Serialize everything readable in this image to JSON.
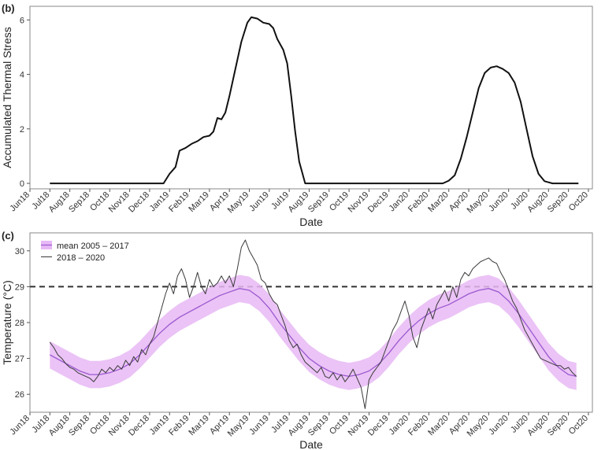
{
  "chart_data": [
    {
      "panel": "(b)",
      "type": "line",
      "xlabel": "Date",
      "ylabel": "Accumulated Thermal Stress",
      "ylim": [
        -0.2,
        6.5
      ],
      "yticks": [
        0,
        2,
        4,
        6
      ],
      "xtick_labels": [
        "Jun18",
        "Jul18",
        "Aug18",
        "Sep18",
        "Oct18",
        "Nov18",
        "Dec18",
        "Jan19",
        "Feb19",
        "Mar19",
        "Apr19",
        "May19",
        "Jun19",
        "Jul19",
        "Aug19",
        "Sep19",
        "Oct19",
        "Nov19",
        "Dec19",
        "Jan20",
        "Feb20",
        "Mar20",
        "Apr20",
        "May20",
        "Jun20",
        "Jul20",
        "Aug20",
        "Sep20",
        "Oct20"
      ],
      "grid": false,
      "series": [
        {
          "color": "#111111",
          "points": [
            [
              1,
              0
            ],
            [
              2,
              0
            ],
            [
              3,
              0
            ],
            [
              4,
              0
            ],
            [
              5,
              0
            ],
            [
              6,
              0
            ],
            [
              6.7,
              0
            ],
            [
              7.0,
              0.35
            ],
            [
              7.3,
              0.6
            ],
            [
              7.5,
              1.2
            ],
            [
              7.8,
              1.3
            ],
            [
              8.1,
              1.45
            ],
            [
              8.4,
              1.55
            ],
            [
              8.7,
              1.7
            ],
            [
              9.0,
              1.75
            ],
            [
              9.2,
              1.9
            ],
            [
              9.4,
              2.4
            ],
            [
              9.6,
              2.35
            ],
            [
              9.8,
              2.6
            ],
            [
              10.0,
              3.2
            ],
            [
              10.3,
              4.2
            ],
            [
              10.6,
              5.2
            ],
            [
              10.9,
              5.9
            ],
            [
              11.1,
              6.1
            ],
            [
              11.4,
              6.05
            ],
            [
              11.7,
              5.9
            ],
            [
              12.0,
              5.85
            ],
            [
              12.2,
              5.7
            ],
            [
              12.4,
              5.3
            ],
            [
              12.7,
              4.9
            ],
            [
              12.9,
              4.4
            ],
            [
              13.1,
              3.2
            ],
            [
              13.3,
              1.9
            ],
            [
              13.5,
              0.8
            ],
            [
              13.8,
              0
            ],
            [
              14.5,
              0
            ],
            [
              15,
              0
            ],
            [
              16,
              0
            ],
            [
              17,
              0
            ],
            [
              18,
              0
            ],
            [
              19,
              0
            ],
            [
              20,
              0
            ],
            [
              20.7,
              0
            ],
            [
              21.0,
              0.1
            ],
            [
              21.3,
              0.3
            ],
            [
              21.6,
              0.9
            ],
            [
              21.9,
              1.7
            ],
            [
              22.2,
              2.6
            ],
            [
              22.5,
              3.5
            ],
            [
              22.8,
              4.05
            ],
            [
              23.1,
              4.25
            ],
            [
              23.4,
              4.3
            ],
            [
              23.7,
              4.2
            ],
            [
              24.0,
              4.05
            ],
            [
              24.3,
              3.7
            ],
            [
              24.6,
              3.0
            ],
            [
              24.9,
              2.0
            ],
            [
              25.2,
              1.0
            ],
            [
              25.5,
              0.35
            ],
            [
              25.8,
              0.08
            ],
            [
              26.2,
              0
            ],
            [
              27,
              0
            ],
            [
              27.5,
              0
            ]
          ]
        }
      ]
    },
    {
      "panel": "(c)",
      "type": "line",
      "xlabel": "Date",
      "ylabel": "Temperature (°C)",
      "ylim": [
        25.5,
        30.5
      ],
      "yticks": [
        26,
        27,
        28,
        29,
        30
      ],
      "xtick_labels": [
        "Jun18",
        "Jul18",
        "Aug18",
        "Sep18",
        "Oct18",
        "Nov18",
        "Dec18",
        "Jan19",
        "Feb19",
        "Mar19",
        "Apr19",
        "May19",
        "Jun19",
        "Jul19",
        "Aug19",
        "Sep19",
        "Oct19",
        "Nov19",
        "Dec19",
        "Jan20",
        "Feb20",
        "Mar20",
        "Apr20",
        "May20",
        "Jun20",
        "Jul20",
        "Aug20",
        "Sep20",
        "Oct20"
      ],
      "threshold": {
        "y": 29,
        "style": "dashed",
        "color": "#333333"
      },
      "grid": false,
      "legend_position": "top-left",
      "series": [
        {
          "name": "mean 2005 – 2017",
          "kind": "band",
          "color": "#9b59d0",
          "band_color": "#e7b8f5",
          "points": [
            [
              1,
              27.1
            ],
            [
              1.5,
              26.95
            ],
            [
              2,
              26.8
            ],
            [
              2.5,
              26.65
            ],
            [
              3,
              26.55
            ],
            [
              3.5,
              26.55
            ],
            [
              4,
              26.6
            ],
            [
              4.5,
              26.7
            ],
            [
              5,
              26.85
            ],
            [
              5.5,
              27.1
            ],
            [
              6,
              27.4
            ],
            [
              6.5,
              27.7
            ],
            [
              7,
              27.95
            ],
            [
              7.5,
              28.15
            ],
            [
              8,
              28.3
            ],
            [
              8.5,
              28.45
            ],
            [
              9,
              28.6
            ],
            [
              9.5,
              28.75
            ],
            [
              10,
              28.85
            ],
            [
              10.5,
              28.95
            ],
            [
              11,
              28.9
            ],
            [
              11.5,
              28.7
            ],
            [
              12,
              28.4
            ],
            [
              12.5,
              28.0
            ],
            [
              13,
              27.65
            ],
            [
              13.5,
              27.3
            ],
            [
              14,
              27.0
            ],
            [
              14.5,
              26.8
            ],
            [
              15,
              26.65
            ],
            [
              15.5,
              26.55
            ],
            [
              16,
              26.5
            ],
            [
              16.5,
              26.55
            ],
            [
              17,
              26.65
            ],
            [
              17.5,
              26.85
            ],
            [
              18,
              27.15
            ],
            [
              18.5,
              27.5
            ],
            [
              19,
              27.8
            ],
            [
              19.5,
              28.05
            ],
            [
              20,
              28.25
            ],
            [
              20.5,
              28.4
            ],
            [
              21,
              28.5
            ],
            [
              21.5,
              28.65
            ],
            [
              22,
              28.8
            ],
            [
              22.5,
              28.9
            ],
            [
              23,
              28.95
            ],
            [
              23.5,
              28.85
            ],
            [
              24,
              28.6
            ],
            [
              24.5,
              28.25
            ],
            [
              25,
              27.85
            ],
            [
              25.5,
              27.45
            ],
            [
              26,
              27.05
            ],
            [
              26.5,
              26.75
            ],
            [
              27,
              26.55
            ],
            [
              27.4,
              26.5
            ]
          ],
          "half_width": 0.38
        },
        {
          "name": "2018 – 2020",
          "kind": "line",
          "color": "#3a3a3a",
          "points": [
            [
              1,
              27.45
            ],
            [
              1.2,
              27.3
            ],
            [
              1.4,
              27.1
            ],
            [
              1.6,
              27.0
            ],
            [
              1.8,
              26.85
            ],
            [
              2.0,
              26.75
            ],
            [
              2.2,
              26.7
            ],
            [
              2.4,
              26.6
            ],
            [
              2.6,
              26.55
            ],
            [
              2.8,
              26.5
            ],
            [
              3.0,
              26.45
            ],
            [
              3.2,
              26.35
            ],
            [
              3.4,
              26.5
            ],
            [
              3.6,
              26.7
            ],
            [
              3.8,
              26.6
            ],
            [
              4.0,
              26.75
            ],
            [
              4.2,
              26.65
            ],
            [
              4.4,
              26.8
            ],
            [
              4.6,
              26.7
            ],
            [
              4.8,
              26.95
            ],
            [
              5.0,
              26.8
            ],
            [
              5.2,
              27.05
            ],
            [
              5.4,
              26.9
            ],
            [
              5.6,
              27.25
            ],
            [
              5.8,
              27.1
            ],
            [
              6.0,
              27.4
            ],
            [
              6.2,
              27.6
            ],
            [
              6.4,
              28.0
            ],
            [
              6.6,
              28.4
            ],
            [
              6.8,
              28.8
            ],
            [
              7.0,
              29.1
            ],
            [
              7.2,
              28.8
            ],
            [
              7.4,
              29.3
            ],
            [
              7.6,
              29.5
            ],
            [
              7.8,
              29.2
            ],
            [
              8.0,
              28.7
            ],
            [
              8.2,
              29.0
            ],
            [
              8.4,
              29.4
            ],
            [
              8.6,
              29.0
            ],
            [
              8.8,
              28.8
            ],
            [
              9.0,
              29.2
            ],
            [
              9.2,
              29.0
            ],
            [
              9.4,
              29.1
            ],
            [
              9.6,
              29.3
            ],
            [
              9.8,
              29.1
            ],
            [
              10.0,
              29.3
            ],
            [
              10.2,
              29.0
            ],
            [
              10.4,
              29.5
            ],
            [
              10.6,
              30.1
            ],
            [
              10.8,
              30.3
            ],
            [
              11.0,
              30.0
            ],
            [
              11.2,
              29.8
            ],
            [
              11.4,
              29.6
            ],
            [
              11.6,
              29.2
            ],
            [
              11.8,
              29.1
            ],
            [
              12.0,
              28.8
            ],
            [
              12.2,
              28.6
            ],
            [
              12.4,
              28.5
            ],
            [
              12.6,
              28.2
            ],
            [
              12.8,
              27.9
            ],
            [
              13.0,
              27.5
            ],
            [
              13.2,
              27.3
            ],
            [
              13.4,
              27.4
            ],
            [
              13.6,
              27.1
            ],
            [
              13.8,
              26.9
            ],
            [
              14.0,
              26.8
            ],
            [
              14.2,
              26.7
            ],
            [
              14.4,
              26.6
            ],
            [
              14.6,
              26.75
            ],
            [
              14.8,
              26.5
            ],
            [
              15.0,
              26.45
            ],
            [
              15.2,
              26.6
            ],
            [
              15.4,
              26.4
            ],
            [
              15.6,
              26.55
            ],
            [
              15.8,
              26.35
            ],
            [
              16.0,
              26.5
            ],
            [
              16.2,
              26.7
            ],
            [
              16.4,
              26.45
            ],
            [
              16.6,
              26.2
            ],
            [
              16.8,
              25.6
            ],
            [
              17.0,
              26.4
            ],
            [
              17.2,
              26.6
            ],
            [
              17.4,
              26.75
            ],
            [
              17.6,
              26.9
            ],
            [
              17.8,
              27.2
            ],
            [
              18.0,
              27.5
            ],
            [
              18.2,
              27.8
            ],
            [
              18.4,
              28.0
            ],
            [
              18.6,
              28.3
            ],
            [
              18.8,
              28.6
            ],
            [
              19.0,
              28.2
            ],
            [
              19.2,
              27.6
            ],
            [
              19.4,
              27.3
            ],
            [
              19.6,
              27.8
            ],
            [
              19.8,
              28.1
            ],
            [
              20.0,
              28.4
            ],
            [
              20.2,
              28.1
            ],
            [
              20.4,
              28.5
            ],
            [
              20.6,
              28.7
            ],
            [
              20.8,
              28.9
            ],
            [
              21.0,
              28.6
            ],
            [
              21.2,
              29.0
            ],
            [
              21.4,
              28.7
            ],
            [
              21.6,
              29.2
            ],
            [
              21.8,
              29.4
            ],
            [
              22.0,
              29.3
            ],
            [
              22.2,
              29.5
            ],
            [
              22.4,
              29.6
            ],
            [
              22.6,
              29.7
            ],
            [
              22.8,
              29.75
            ],
            [
              23.0,
              29.8
            ],
            [
              23.2,
              29.7
            ],
            [
              23.4,
              29.65
            ],
            [
              23.6,
              29.4
            ],
            [
              23.8,
              29.2
            ],
            [
              24.0,
              28.9
            ],
            [
              24.2,
              28.6
            ],
            [
              24.4,
              28.4
            ],
            [
              24.6,
              28.1
            ],
            [
              24.8,
              27.8
            ],
            [
              25.0,
              27.6
            ],
            [
              25.2,
              27.4
            ],
            [
              25.4,
              27.2
            ],
            [
              25.6,
              27.0
            ],
            [
              25.8,
              26.95
            ],
            [
              26.0,
              26.9
            ],
            [
              26.2,
              26.85
            ],
            [
              26.4,
              26.8
            ],
            [
              26.6,
              26.8
            ],
            [
              26.8,
              26.7
            ],
            [
              27.0,
              26.75
            ],
            [
              27.2,
              26.6
            ],
            [
              27.4,
              26.5
            ]
          ]
        }
      ]
    }
  ]
}
